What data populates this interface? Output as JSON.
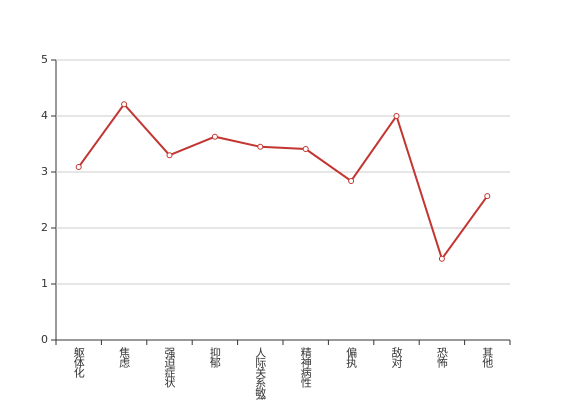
{
  "chart_data": {
    "type": "line",
    "categories": [
      "躯体化",
      "焦虑",
      "强迫症状",
      "抑郁",
      "人际关系敏感",
      "精神病性",
      "偏执",
      "敌对",
      "恐怖",
      "其他"
    ],
    "values": [
      3.09,
      4.21,
      3.3,
      3.63,
      3.45,
      3.41,
      2.84,
      4.0,
      1.45,
      2.57
    ],
    "color": "#c23531",
    "ylim": [
      0,
      5
    ],
    "yticks": [
      0,
      1,
      2,
      3,
      4,
      5
    ],
    "grid": true
  }
}
